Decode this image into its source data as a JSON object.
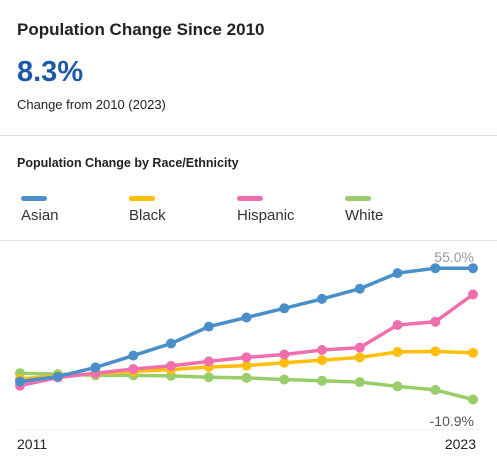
{
  "header": {
    "title": "Population Change Since 2010",
    "value": "8.3%",
    "subtitle": "Change from 2010 (2023)"
  },
  "chart_data": {
    "type": "line",
    "title": "Population Change by Race/Ethnicity",
    "x": [
      2011,
      2012,
      2013,
      2014,
      2015,
      2016,
      2017,
      2018,
      2019,
      2020,
      2021,
      2022,
      2023
    ],
    "x_tick_labels": [
      "2011",
      "2023"
    ],
    "ylim": [
      -10.9,
      55.0
    ],
    "annotations": {
      "max": "55.0%",
      "min": "-10.9%"
    },
    "grid": false,
    "legend_position": "top",
    "series": [
      {
        "name": "Asian",
        "color": "#4a8fca",
        "values": [
          -0.8,
          1.4,
          5.5,
          10.8,
          16.2,
          23.8,
          27.9,
          32.0,
          36.2,
          40.8,
          47.8,
          50.0,
          50.0
        ]
      },
      {
        "name": "Black",
        "color": "#ffbe0b",
        "values": [
          0.3,
          1.7,
          2.7,
          3.7,
          4.5,
          5.7,
          6.3,
          7.6,
          8.8,
          10.0,
          12.4,
          12.7,
          12.0
        ]
      },
      {
        "name": "Hispanic",
        "color": "#ef6fae",
        "values": [
          -2.7,
          1.0,
          2.9,
          4.8,
          6.2,
          8.2,
          10.0,
          11.3,
          13.3,
          14.4,
          24.5,
          26.0,
          38.2
        ]
      },
      {
        "name": "White",
        "color": "#98cd6a",
        "values": [
          2.9,
          2.5,
          2.0,
          1.9,
          1.7,
          1.1,
          0.8,
          0.1,
          -0.5,
          -1.1,
          -3.0,
          -4.6,
          -8.9
        ]
      }
    ]
  }
}
